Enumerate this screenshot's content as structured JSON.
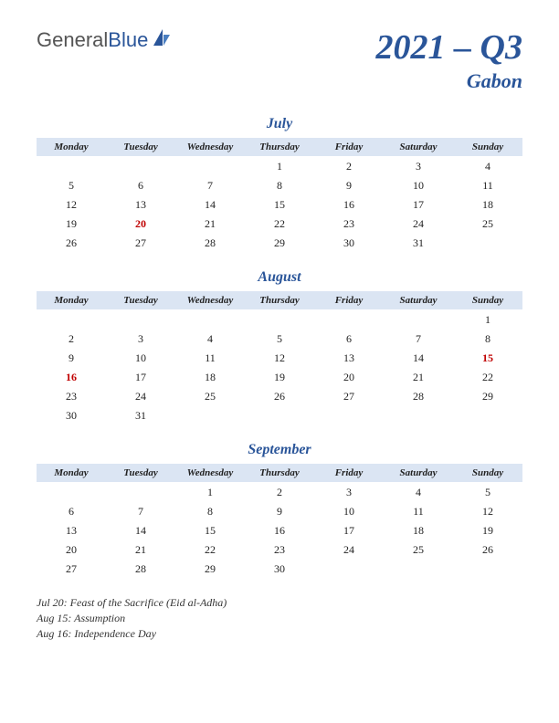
{
  "logo": {
    "text1": "General",
    "text2": "Blue"
  },
  "title": {
    "main": "2021 – Q3",
    "sub": "Gabon"
  },
  "day_headers": [
    "Monday",
    "Tuesday",
    "Wednesday",
    "Thursday",
    "Friday",
    "Saturday",
    "Sunday"
  ],
  "colors": {
    "accent": "#2a5599",
    "header_bg": "#dbe5f3",
    "holiday": "#c00000",
    "text": "#222222",
    "background": "#ffffff"
  },
  "months": [
    {
      "name": "July",
      "weeks": [
        [
          "",
          "",
          "",
          "1",
          "2",
          "3",
          "4"
        ],
        [
          "5",
          "6",
          "7",
          "8",
          "9",
          "10",
          "11"
        ],
        [
          "12",
          "13",
          "14",
          "15",
          "16",
          "17",
          "18"
        ],
        [
          "19",
          "20",
          "21",
          "22",
          "23",
          "24",
          "25"
        ],
        [
          "26",
          "27",
          "28",
          "29",
          "30",
          "31",
          ""
        ]
      ],
      "holidays": [
        "20"
      ]
    },
    {
      "name": "August",
      "weeks": [
        [
          "",
          "",
          "",
          "",
          "",
          "",
          "1"
        ],
        [
          "2",
          "3",
          "4",
          "5",
          "6",
          "7",
          "8"
        ],
        [
          "9",
          "10",
          "11",
          "12",
          "13",
          "14",
          "15"
        ],
        [
          "16",
          "17",
          "18",
          "19",
          "20",
          "21",
          "22"
        ],
        [
          "23",
          "24",
          "25",
          "26",
          "27",
          "28",
          "29"
        ],
        [
          "30",
          "31",
          "",
          "",
          "",
          "",
          ""
        ]
      ],
      "holidays": [
        "15",
        "16"
      ]
    },
    {
      "name": "September",
      "weeks": [
        [
          "",
          "",
          "1",
          "2",
          "3",
          "4",
          "5"
        ],
        [
          "6",
          "7",
          "8",
          "9",
          "10",
          "11",
          "12"
        ],
        [
          "13",
          "14",
          "15",
          "16",
          "17",
          "18",
          "19"
        ],
        [
          "20",
          "21",
          "22",
          "23",
          "24",
          "25",
          "26"
        ],
        [
          "27",
          "28",
          "29",
          "30",
          "",
          "",
          ""
        ]
      ],
      "holidays": []
    }
  ],
  "notes": [
    "Jul 20: Feast of the Sacrifice (Eid al-Adha)",
    "Aug 15: Assumption",
    "Aug 16: Independence Day"
  ]
}
